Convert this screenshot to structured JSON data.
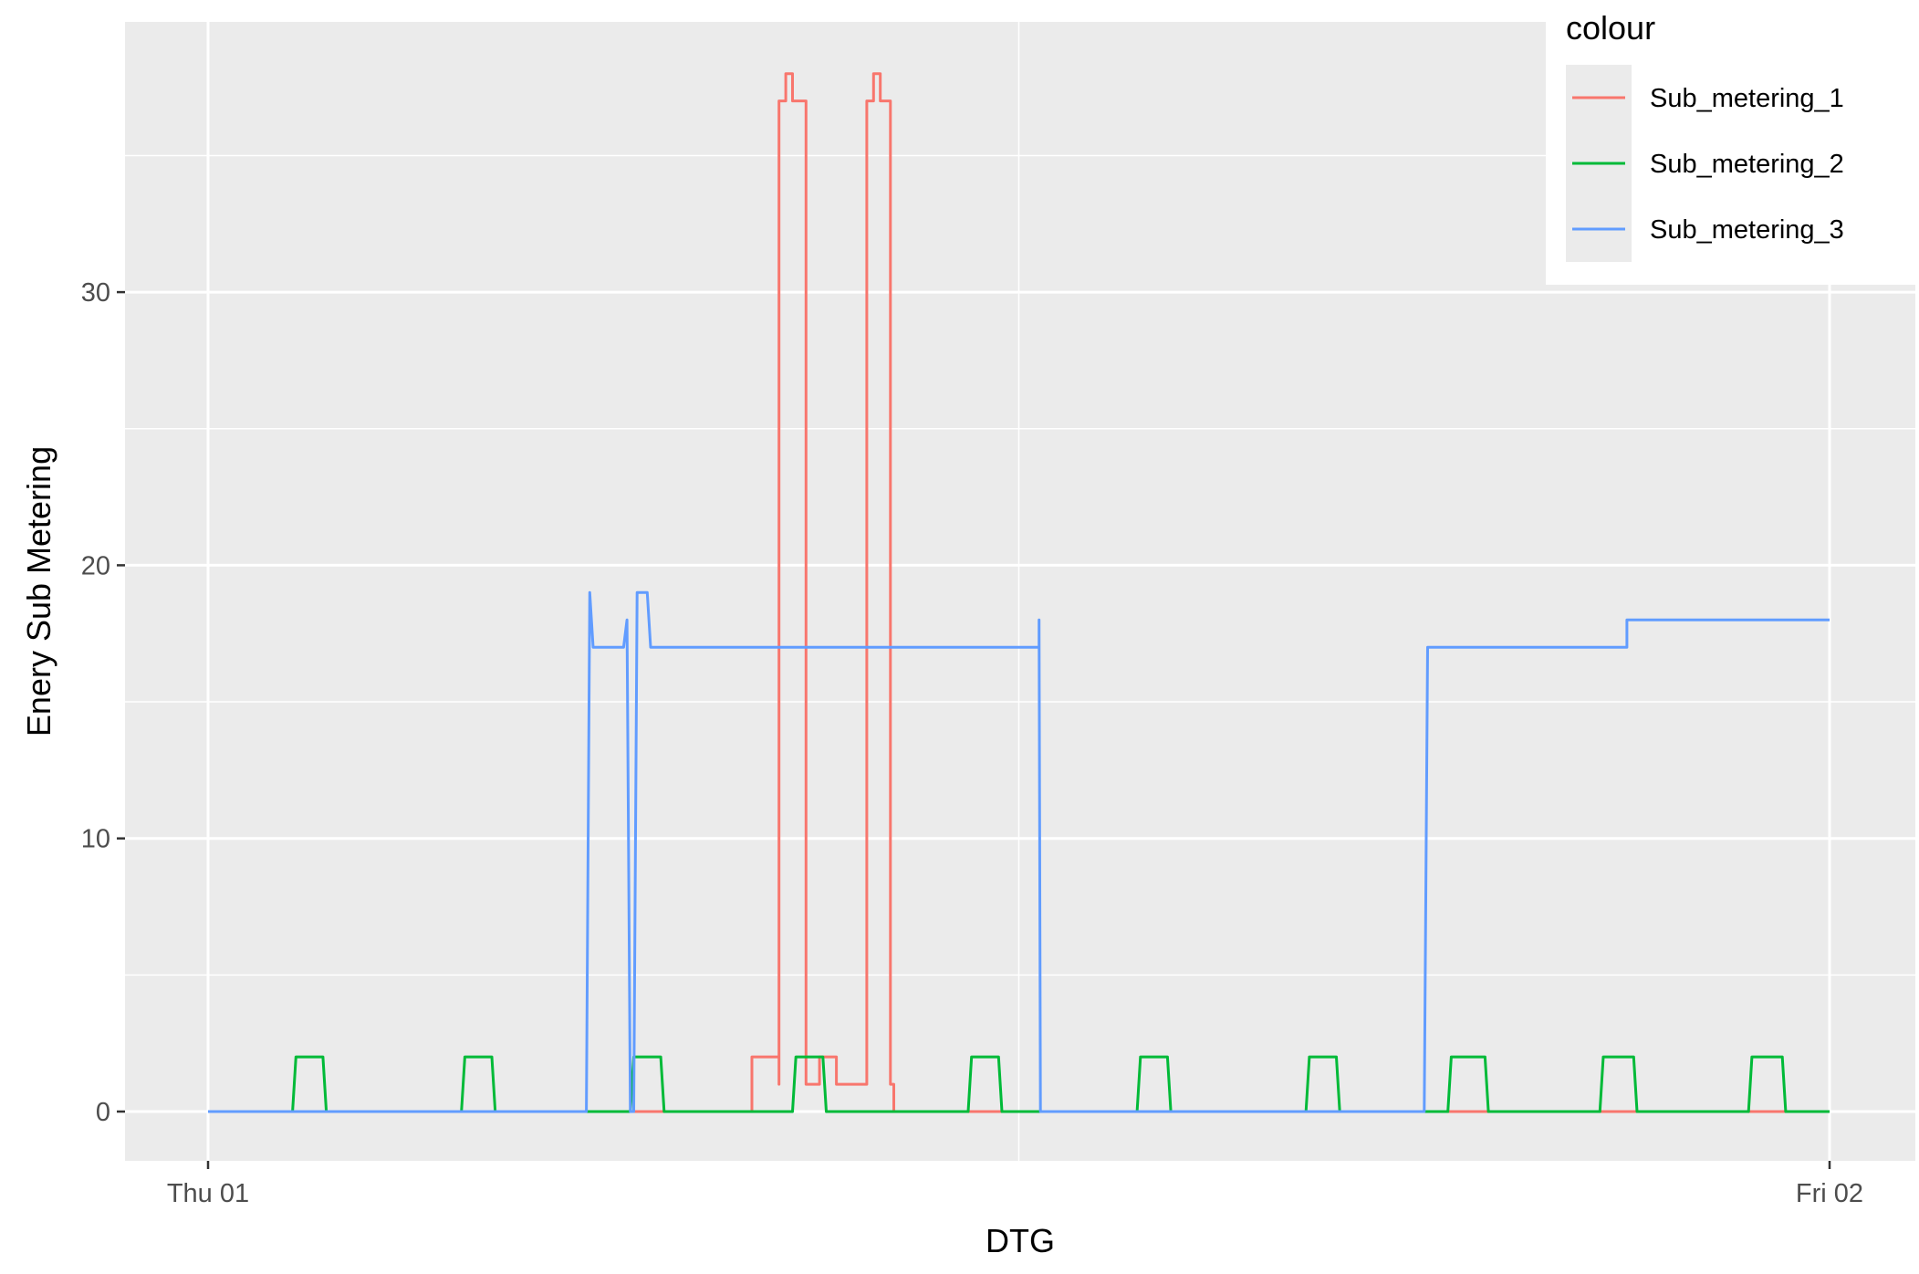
{
  "chart_data": {
    "type": "line",
    "xlabel": "DTG",
    "ylabel": "Enery Sub Metering",
    "xlim": [
      0,
      24
    ],
    "ylim": [
      -1.9,
      39.9
    ],
    "x_ticks": [
      {
        "value": 0,
        "label": "Thu 01"
      },
      {
        "value": 24,
        "label": "Fri 02"
      }
    ],
    "y_ticks": [
      0,
      10,
      20,
      30
    ],
    "grid": true,
    "legend": {
      "title": "colour",
      "placement": "top-right"
    },
    "series": [
      {
        "name": "Sub_metering_1",
        "color": "#F8766D",
        "points": [
          [
            0,
            0
          ],
          [
            8.05,
            0
          ],
          [
            8.05,
            2
          ],
          [
            8.45,
            2
          ],
          [
            8.45,
            1
          ],
          [
            8.45,
            37
          ],
          [
            8.55,
            37
          ],
          [
            8.55,
            38
          ],
          [
            8.65,
            38
          ],
          [
            8.65,
            37
          ],
          [
            8.85,
            37
          ],
          [
            8.85,
            1
          ],
          [
            9.05,
            1
          ],
          [
            9.05,
            2
          ],
          [
            9.3,
            2
          ],
          [
            9.3,
            1
          ],
          [
            9.75,
            1
          ],
          [
            9.75,
            37
          ],
          [
            9.85,
            37
          ],
          [
            9.85,
            38
          ],
          [
            9.95,
            38
          ],
          [
            9.95,
            37
          ],
          [
            10.1,
            37
          ],
          [
            10.1,
            1
          ],
          [
            10.15,
            1
          ],
          [
            10.15,
            0
          ],
          [
            24,
            0
          ]
        ]
      },
      {
        "name": "Sub_metering_2",
        "color": "#00BA38",
        "points": [
          [
            0,
            0
          ],
          [
            1.25,
            0
          ],
          [
            1.3,
            2
          ],
          [
            1.7,
            2
          ],
          [
            1.75,
            0
          ],
          [
            3.75,
            0
          ],
          [
            3.8,
            2
          ],
          [
            4.2,
            2
          ],
          [
            4.25,
            0
          ],
          [
            6.25,
            0
          ],
          [
            6.3,
            2
          ],
          [
            6.7,
            2
          ],
          [
            6.75,
            0
          ],
          [
            8.65,
            0
          ],
          [
            8.7,
            2
          ],
          [
            9.1,
            2
          ],
          [
            9.15,
            0
          ],
          [
            11.25,
            0
          ],
          [
            11.3,
            2
          ],
          [
            11.7,
            2
          ],
          [
            11.75,
            0
          ],
          [
            13.75,
            0
          ],
          [
            13.8,
            2
          ],
          [
            14.2,
            2
          ],
          [
            14.25,
            0
          ],
          [
            16.25,
            0
          ],
          [
            16.3,
            2
          ],
          [
            16.7,
            2
          ],
          [
            16.75,
            0
          ],
          [
            18.35,
            0
          ],
          [
            18.4,
            2
          ],
          [
            18.9,
            2
          ],
          [
            18.95,
            0
          ],
          [
            20.6,
            0
          ],
          [
            20.65,
            2
          ],
          [
            21.1,
            2
          ],
          [
            21.15,
            0
          ],
          [
            22.8,
            0
          ],
          [
            22.85,
            2
          ],
          [
            23.3,
            2
          ],
          [
            23.35,
            0
          ],
          [
            24,
            0
          ]
        ]
      },
      {
        "name": "Sub_metering_3",
        "color": "#619CFF",
        "points": [
          [
            0,
            0
          ],
          [
            5.6,
            0
          ],
          [
            5.65,
            19
          ],
          [
            5.7,
            17
          ],
          [
            6.15,
            17
          ],
          [
            6.2,
            18
          ],
          [
            6.25,
            0
          ],
          [
            6.3,
            0
          ],
          [
            6.35,
            19
          ],
          [
            6.5,
            19
          ],
          [
            6.55,
            17
          ],
          [
            12.3,
            17
          ],
          [
            12.3,
            18
          ],
          [
            12.32,
            0
          ],
          [
            18.0,
            0
          ],
          [
            18.05,
            17
          ],
          [
            21.0,
            17
          ],
          [
            21.0,
            18
          ],
          [
            24,
            18
          ]
        ]
      }
    ]
  }
}
